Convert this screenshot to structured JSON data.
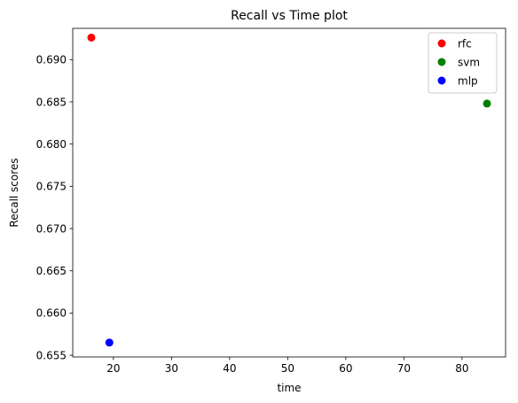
{
  "chart_data": {
    "type": "scatter",
    "title": "Recall vs Time plot",
    "xlabel": "time",
    "ylabel": "Recall scores",
    "xlim": [
      13,
      87.5
    ],
    "ylim": [
      0.6548,
      0.6937
    ],
    "xticks": [
      20,
      30,
      40,
      50,
      60,
      70,
      80
    ],
    "yticks": [
      0.655,
      0.66,
      0.665,
      0.67,
      0.675,
      0.68,
      0.685,
      0.69
    ],
    "grid": false,
    "legend_position": "top-right",
    "series": [
      {
        "name": "rfc",
        "color": "#ff0000",
        "points": [
          {
            "x": 16.2,
            "y": 0.6926
          }
        ]
      },
      {
        "name": "svm",
        "color": "#008000",
        "points": [
          {
            "x": 84.3,
            "y": 0.6848
          }
        ]
      },
      {
        "name": "mlp",
        "color": "#0000ff",
        "points": [
          {
            "x": 19.3,
            "y": 0.6565
          }
        ]
      }
    ]
  }
}
